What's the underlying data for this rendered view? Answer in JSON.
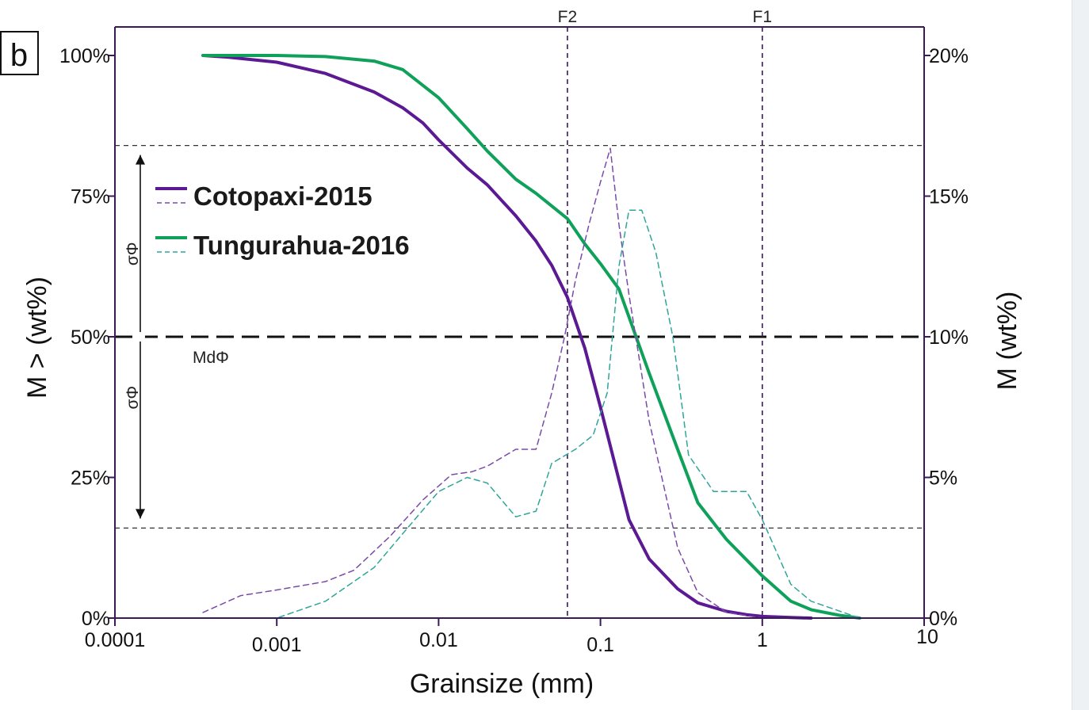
{
  "chart_data": {
    "type": "line",
    "panel_label": "b",
    "xlabel": "Grainsize (mm)",
    "ylabel_left": "M > (wt%)",
    "ylabel_right": "M (wt%)",
    "xscale": "log",
    "xlim": [
      0.0001,
      10
    ],
    "ylim_left": [
      0,
      100
    ],
    "ylim_right": [
      0,
      20
    ],
    "x_ticks": [
      {
        "value": 0.0001,
        "label": "0.0001"
      },
      {
        "value": 0.001,
        "label": "0.001"
      },
      {
        "value": 0.01,
        "label": "0.01"
      },
      {
        "value": 0.1,
        "label": "0.1"
      },
      {
        "value": 1,
        "label": "1"
      },
      {
        "value": 10,
        "label": "10"
      }
    ],
    "y_left_ticks": [
      {
        "value": 0,
        "label": "0%"
      },
      {
        "value": 25,
        "label": "25%"
      },
      {
        "value": 50,
        "label": "50%"
      },
      {
        "value": 75,
        "label": "75%"
      },
      {
        "value": 100,
        "label": "100%"
      }
    ],
    "y_right_ticks": [
      {
        "value": 0,
        "label": "0%"
      },
      {
        "value": 5,
        "label": "5%"
      },
      {
        "value": 10,
        "label": "10%"
      },
      {
        "value": 15,
        "label": "15%"
      },
      {
        "value": 20,
        "label": "20%"
      }
    ],
    "reference_lines": {
      "vertical": [
        {
          "value": 0.0625,
          "label": "F2"
        },
        {
          "value": 1,
          "label": "F1"
        }
      ],
      "horizontal_median": {
        "value": 50,
        "label": "MdΦ"
      },
      "horizontal_sigma": [
        16,
        84
      ],
      "sigma_label": "σΦ"
    },
    "legend": {
      "position": "top-left",
      "entries": [
        {
          "name": "Cotopaxi-2015",
          "color": "#5b1a94",
          "freq_color": "#7a4aa8"
        },
        {
          "name": "Tungurahua-2016",
          "color": "#0fa15a",
          "freq_color": "#2fa59a"
        }
      ]
    },
    "series": [
      {
        "name": "Cotopaxi-2015",
        "kind": "cumulative",
        "axis": "left",
        "color": "#5b1a94",
        "style": "solid",
        "x": [
          0.00035,
          0.0005,
          0.001,
          0.002,
          0.004,
          0.006,
          0.008,
          0.01,
          0.015,
          0.02,
          0.03,
          0.04,
          0.05,
          0.0625,
          0.08,
          0.1,
          0.12,
          0.15,
          0.2,
          0.3,
          0.4,
          0.6,
          0.8,
          1,
          1.5,
          2
        ],
        "values": [
          100,
          99.7,
          98.8,
          96.8,
          93.5,
          90.7,
          88,
          85,
          80,
          77,
          71.5,
          67,
          62.7,
          57,
          48,
          37.5,
          28.5,
          17.5,
          10.5,
          5.2,
          2.7,
          1.2,
          0.6,
          0.3,
          0.1,
          0
        ]
      },
      {
        "name": "Tungurahua-2016",
        "kind": "cumulative",
        "axis": "left",
        "color": "#0fa15a",
        "style": "solid",
        "x": [
          0.00035,
          0.001,
          0.002,
          0.004,
          0.006,
          0.01,
          0.015,
          0.02,
          0.03,
          0.04,
          0.0625,
          0.08,
          0.1,
          0.13,
          0.2,
          0.3,
          0.4,
          0.6,
          1,
          1.5,
          2,
          3,
          4
        ],
        "values": [
          100,
          100,
          99.8,
          99,
          97.5,
          92.5,
          87,
          83,
          78,
          75.5,
          71,
          66.5,
          63,
          58.5,
          43.5,
          30,
          20.5,
          14,
          7.5,
          3,
          1.5,
          0.5,
          0
        ]
      },
      {
        "name": "Cotopaxi-2015",
        "kind": "frequency",
        "axis": "right",
        "color": "#7a4aa8",
        "style": "dashed",
        "x": [
          0.00035,
          0.0006,
          0.001,
          0.002,
          0.003,
          0.005,
          0.008,
          0.012,
          0.016,
          0.02,
          0.03,
          0.04,
          0.05,
          0.06,
          0.07,
          0.085,
          0.1,
          0.115,
          0.13,
          0.15,
          0.2,
          0.3,
          0.4,
          0.6,
          1
        ],
        "values": [
          0.2,
          0.8,
          1,
          1.3,
          1.7,
          2.9,
          4.2,
          5.1,
          5.2,
          5.4,
          6,
          6,
          8,
          10,
          12,
          14,
          15.5,
          16.7,
          14,
          11.5,
          7,
          2.5,
          0.9,
          0.2,
          0
        ]
      },
      {
        "name": "Tungurahua-2016",
        "kind": "frequency",
        "axis": "right",
        "color": "#2fa59a",
        "style": "dashed",
        "x": [
          0.00035,
          0.001,
          0.002,
          0.004,
          0.006,
          0.01,
          0.015,
          0.02,
          0.03,
          0.04,
          0.05,
          0.07,
          0.09,
          0.11,
          0.13,
          0.15,
          0.18,
          0.22,
          0.28,
          0.35,
          0.5,
          0.8,
          1,
          1.5,
          2,
          4
        ],
        "values": [
          0,
          0,
          0.6,
          1.8,
          3,
          4.5,
          5,
          4.8,
          3.6,
          3.8,
          5.5,
          6,
          6.5,
          8,
          12.5,
          14.5,
          14.5,
          13,
          10,
          5.8,
          4.5,
          4.5,
          3.5,
          1.2,
          0.6,
          0
        ]
      }
    ]
  }
}
